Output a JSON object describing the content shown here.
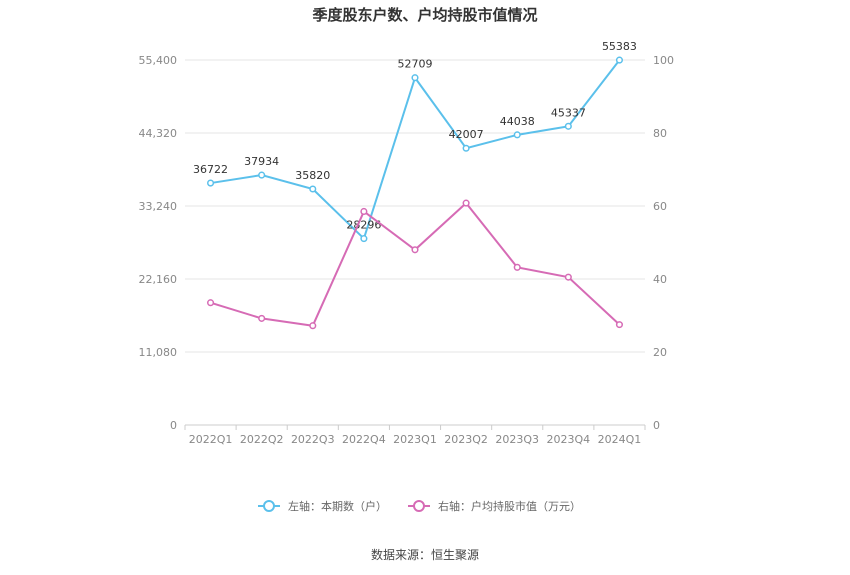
{
  "chart_data": {
    "type": "line",
    "title": "季度股东户数、户均持股市值情况",
    "categories": [
      "2022Q1",
      "2022Q2",
      "2022Q3",
      "2022Q4",
      "2023Q1",
      "2023Q2",
      "2023Q3",
      "2023Q4",
      "2024Q1"
    ],
    "left_axis": {
      "ylim": [
        0,
        55400
      ],
      "ticks": [
        "0",
        "11,080",
        "22,160",
        "33,240",
        "44,320",
        "55,400"
      ]
    },
    "right_axis": {
      "ylim": [
        0,
        100
      ],
      "ticks": [
        "0",
        "20",
        "40",
        "60",
        "80",
        "100"
      ]
    },
    "series": [
      {
        "name": "左轴：本期数（户）",
        "axis": "left",
        "color": "#5bc0eb",
        "values": [
          36722,
          37934,
          35820,
          28296,
          52709,
          42007,
          44038,
          45337,
          55383
        ],
        "labels": [
          "36722",
          "37934",
          "35820",
          "28296",
          "52709",
          "42007",
          "44038",
          "45337",
          "55383"
        ]
      },
      {
        "name": "右轴：户均持股市值（万元）",
        "axis": "right",
        "color": "#d66bb5",
        "values": [
          33.5,
          29.2,
          27.2,
          58.5,
          48.0,
          60.8,
          43.2,
          40.5,
          27.5
        ]
      }
    ],
    "grid": true,
    "legend_position": "bottom"
  },
  "source": "数据来源：恒生聚源"
}
